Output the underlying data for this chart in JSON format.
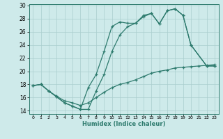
{
  "xlabel": "Humidex (Indice chaleur)",
  "bg_color": "#ceeaea",
  "grid_color": "#aacece",
  "line_color": "#2e7b6e",
  "xlim_min": -0.5,
  "xlim_max": 23.5,
  "ylim_min": 13.5,
  "ylim_max": 30.2,
  "xticks": [
    0,
    1,
    2,
    3,
    4,
    5,
    6,
    7,
    8,
    9,
    10,
    11,
    12,
    13,
    14,
    15,
    16,
    17,
    18,
    19,
    20,
    21,
    22,
    23
  ],
  "yticks": [
    14,
    16,
    18,
    20,
    22,
    24,
    26,
    28,
    30
  ],
  "line1_x": [
    0,
    1,
    2,
    3,
    4,
    5,
    6,
    7,
    8,
    9,
    10,
    11,
    12,
    13,
    14,
    15,
    16,
    17,
    18,
    19,
    20,
    22,
    23
  ],
  "line1_y": [
    17.8,
    18.0,
    17.0,
    16.1,
    15.2,
    14.7,
    14.2,
    17.5,
    19.5,
    23.0,
    26.8,
    27.5,
    27.3,
    27.3,
    28.5,
    28.8,
    27.2,
    29.2,
    29.5,
    28.5,
    24.0,
    20.8,
    20.8
  ],
  "line2_x": [
    0,
    1,
    2,
    3,
    4,
    5,
    6,
    7,
    8,
    9,
    10,
    11,
    12,
    13,
    14,
    15,
    16,
    17,
    18,
    19,
    20,
    22,
    23
  ],
  "line2_y": [
    17.8,
    18.0,
    17.0,
    16.1,
    15.2,
    14.7,
    14.2,
    14.2,
    17.0,
    19.5,
    23.0,
    25.5,
    26.8,
    27.3,
    28.3,
    28.8,
    27.2,
    29.2,
    29.5,
    28.5,
    24.0,
    20.8,
    20.8
  ],
  "line3_x": [
    0,
    1,
    2,
    3,
    4,
    5,
    6,
    7,
    8,
    9,
    10,
    11,
    12,
    13,
    14,
    15,
    16,
    17,
    18,
    19,
    20,
    21,
    22,
    23
  ],
  "line3_y": [
    17.8,
    18.0,
    17.0,
    16.2,
    15.5,
    15.2,
    14.8,
    15.2,
    16.0,
    16.8,
    17.5,
    18.0,
    18.3,
    18.7,
    19.2,
    19.7,
    20.0,
    20.2,
    20.5,
    20.6,
    20.7,
    20.8,
    20.9,
    21.0
  ]
}
